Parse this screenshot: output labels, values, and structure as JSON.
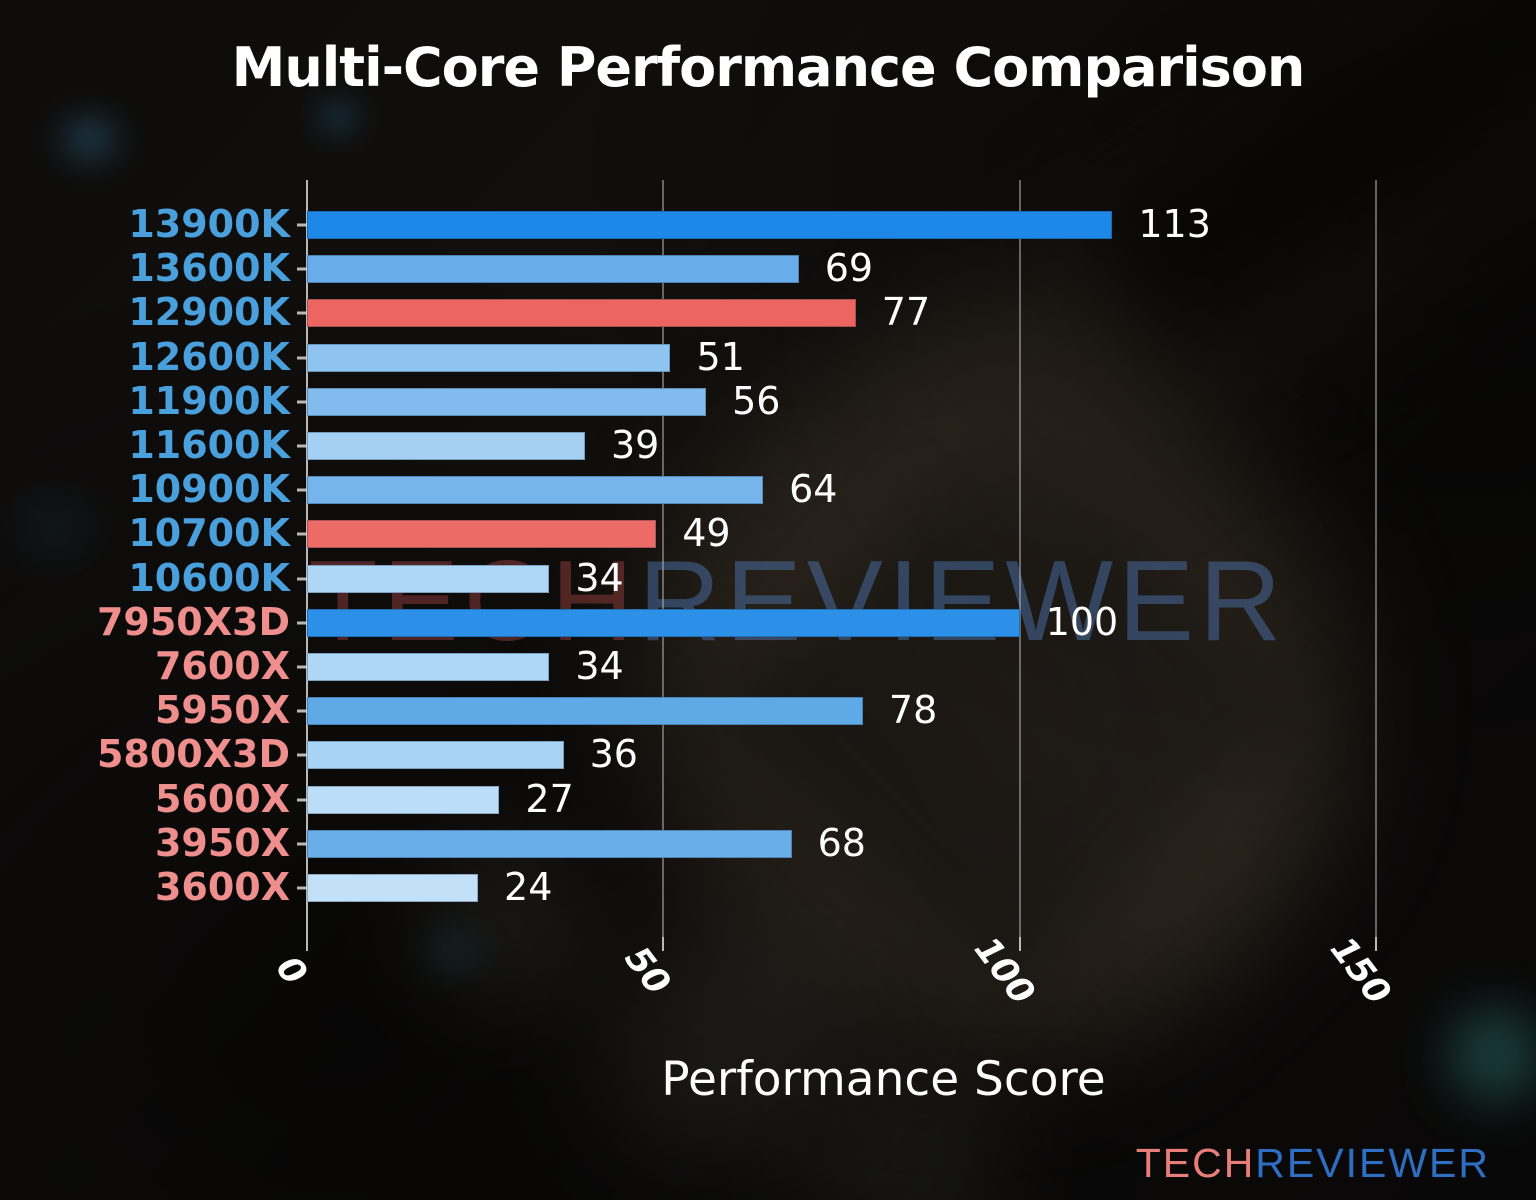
{
  "watermark": {
    "tech": "TECH",
    "reviewer": "REVIEWER"
  },
  "logo": {
    "tech": "TECH",
    "reviewer": "REVIEWER"
  },
  "colors": {
    "intel_label": "#4aa0dc",
    "amd_label": "#ee8f8d",
    "highlight_bar": "#ed6662",
    "value_label": "#ffffff",
    "axis": "#d7d7d7",
    "background": "#0d0c0b"
  },
  "chart_data": {
    "type": "bar",
    "orientation": "horizontal",
    "title": "Multi-Core Performance Comparison",
    "xlabel": "Performance Score",
    "ylabel": "",
    "xlim": [
      0,
      162
    ],
    "x_ticks": [
      0,
      50,
      100,
      150
    ],
    "grid": "vertical gridlines at x ticks",
    "legend": null,
    "value_labels": "shown at end of each bar",
    "categories": [
      "13900K",
      "13600K",
      "12900K",
      "12600K",
      "11900K",
      "11600K",
      "10900K",
      "10700K",
      "10600K",
      "7950X3D",
      "7600X",
      "5950X",
      "5800X3D",
      "5600X",
      "3950X",
      "3600X"
    ],
    "values": [
      113,
      69,
      77,
      51,
      56,
      39,
      64,
      49,
      34,
      100,
      34,
      78,
      36,
      27,
      68,
      24
    ],
    "bars": [
      {
        "label": "13900K",
        "value": 113,
        "bar_color": "#1e88e8",
        "label_color": "#4aa0dc",
        "highlighted": false
      },
      {
        "label": "13600K",
        "value": 69,
        "bar_color": "#68ace9",
        "label_color": "#4aa0dc",
        "highlighted": false
      },
      {
        "label": "12900K",
        "value": 77,
        "bar_color": "#ed6561",
        "label_color": "#4aa0dc",
        "highlighted": true
      },
      {
        "label": "12600K",
        "value": 51,
        "bar_color": "#8fc4f0",
        "label_color": "#4aa0dc",
        "highlighted": false
      },
      {
        "label": "11900K",
        "value": 56,
        "bar_color": "#82bcee",
        "label_color": "#4aa0dc",
        "highlighted": false
      },
      {
        "label": "11600K",
        "value": 39,
        "bar_color": "#a4d0f3",
        "label_color": "#4aa0dc",
        "highlighted": false
      },
      {
        "label": "10900K",
        "value": 64,
        "bar_color": "#75b5ec",
        "label_color": "#4aa0dc",
        "highlighted": false
      },
      {
        "label": "10700K",
        "value": 49,
        "bar_color": "#ed6b66",
        "label_color": "#4aa0dc",
        "highlighted": true
      },
      {
        "label": "10600K",
        "value": 34,
        "bar_color": "#aed6f5",
        "label_color": "#4aa0dc",
        "highlighted": false
      },
      {
        "label": "7950X3D",
        "value": 100,
        "bar_color": "#2c90e9",
        "label_color": "#ee8f8d",
        "highlighted": false
      },
      {
        "label": "7600X",
        "value": 34,
        "bar_color": "#aed6f5",
        "label_color": "#ee8f8d",
        "highlighted": false
      },
      {
        "label": "5950X",
        "value": 78,
        "bar_color": "#60a9e7",
        "label_color": "#ee8f8d",
        "highlighted": false
      },
      {
        "label": "5800X3D",
        "value": 36,
        "bar_color": "#a9d3f4",
        "label_color": "#ee8f8d",
        "highlighted": false
      },
      {
        "label": "5600X",
        "value": 27,
        "bar_color": "#bbddf7",
        "label_color": "#ee8f8d",
        "highlighted": false
      },
      {
        "label": "3950X",
        "value": 68,
        "bar_color": "#69aee9",
        "label_color": "#ee8f8d",
        "highlighted": false
      },
      {
        "label": "3600X",
        "value": 24,
        "bar_color": "#c2e1f8",
        "label_color": "#ee8f8d",
        "highlighted": false
      }
    ]
  }
}
